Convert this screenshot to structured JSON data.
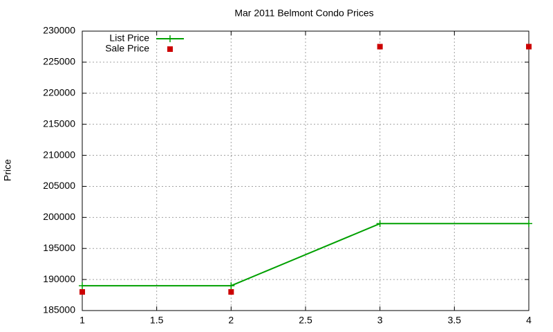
{
  "chart_data": {
    "type": "line",
    "title": "Mar 2011 Belmont Condo Prices",
    "y_label": "Price",
    "x": [
      1,
      2,
      3,
      4
    ],
    "series": [
      {
        "name": "List Price",
        "color": "#00a000",
        "style": "linespoints",
        "values": [
          189000,
          189000,
          199000,
          199000
        ]
      },
      {
        "name": "Sale Price",
        "color": "#cc0000",
        "style": "points",
        "values": [
          188000,
          188000,
          227500,
          227500
        ]
      }
    ],
    "xlim": [
      1,
      4
    ],
    "xticks": [
      1,
      1.5,
      2,
      2.5,
      3,
      3.5,
      4
    ],
    "ylim": [
      185000,
      230000
    ],
    "yticks": [
      185000,
      190000,
      195000,
      200000,
      205000,
      210000,
      215000,
      220000,
      225000,
      230000
    ],
    "grid": true,
    "legend": "top-left"
  }
}
